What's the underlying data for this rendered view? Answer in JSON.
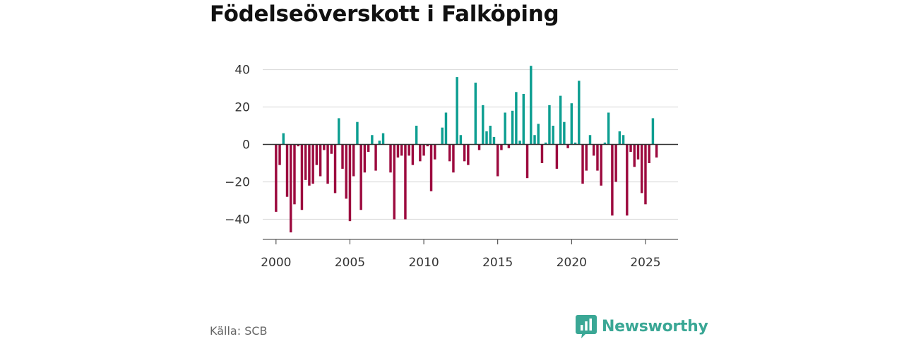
{
  "title": "Födelseöverskott i Falköping",
  "source": "Källa: SCB",
  "brand": {
    "name": "Newsworthy",
    "icon": "newsworthy-logo-icon",
    "color": "#3aa795"
  },
  "colors": {
    "positive": "#0d9e91",
    "negative": "#9c0a3e",
    "grid": "#dddddd",
    "zero_line": "#333333"
  },
  "chart_data": {
    "type": "bar",
    "title": "Födelseöverskott i Falköping",
    "xlabel": "",
    "ylabel": "",
    "ylim": [
      -50,
      45
    ],
    "xlim": [
      1999.1,
      2027.2
    ],
    "y_ticks": [
      40,
      20,
      0,
      -20,
      -40
    ],
    "y_tick_labels": [
      "40",
      "20",
      "0",
      "−20",
      "−40"
    ],
    "x_ticks": [
      2000,
      2005,
      2010,
      2015,
      2020,
      2025
    ],
    "x_tick_labels": [
      "2000",
      "2005",
      "2010",
      "2015",
      "2020",
      "2025"
    ],
    "grid": true,
    "frequency": "quarterly",
    "start": "2000-Q1",
    "values": [
      -36,
      -11,
      6,
      -28,
      -47,
      -32,
      -1,
      -35,
      -19,
      -22,
      -21,
      -11,
      -17,
      -3,
      -21,
      -5,
      -26,
      14,
      -13,
      -29,
      -41,
      -17,
      12,
      -35,
      -15,
      -4,
      5,
      -14,
      2,
      6,
      0,
      -15,
      -40,
      -7,
      -6,
      -40,
      -6,
      -11,
      10,
      -9,
      -6,
      -1,
      -25,
      -8,
      0,
      9,
      17,
      -9,
      -15,
      36,
      5,
      -9,
      -11,
      0,
      33,
      -3,
      21,
      7,
      10,
      4,
      -17,
      -3,
      17,
      -2,
      18,
      28,
      2,
      27,
      -18,
      42,
      5,
      11,
      -10,
      1,
      21,
      10,
      -13,
      26,
      12,
      -2,
      22,
      1,
      34,
      -21,
      -14,
      5,
      -6,
      -14,
      -22,
      1,
      17,
      -38,
      -20,
      7,
      5,
      -38,
      -4,
      -12,
      -8,
      -26,
      -32,
      -10,
      14,
      -7
    ]
  }
}
